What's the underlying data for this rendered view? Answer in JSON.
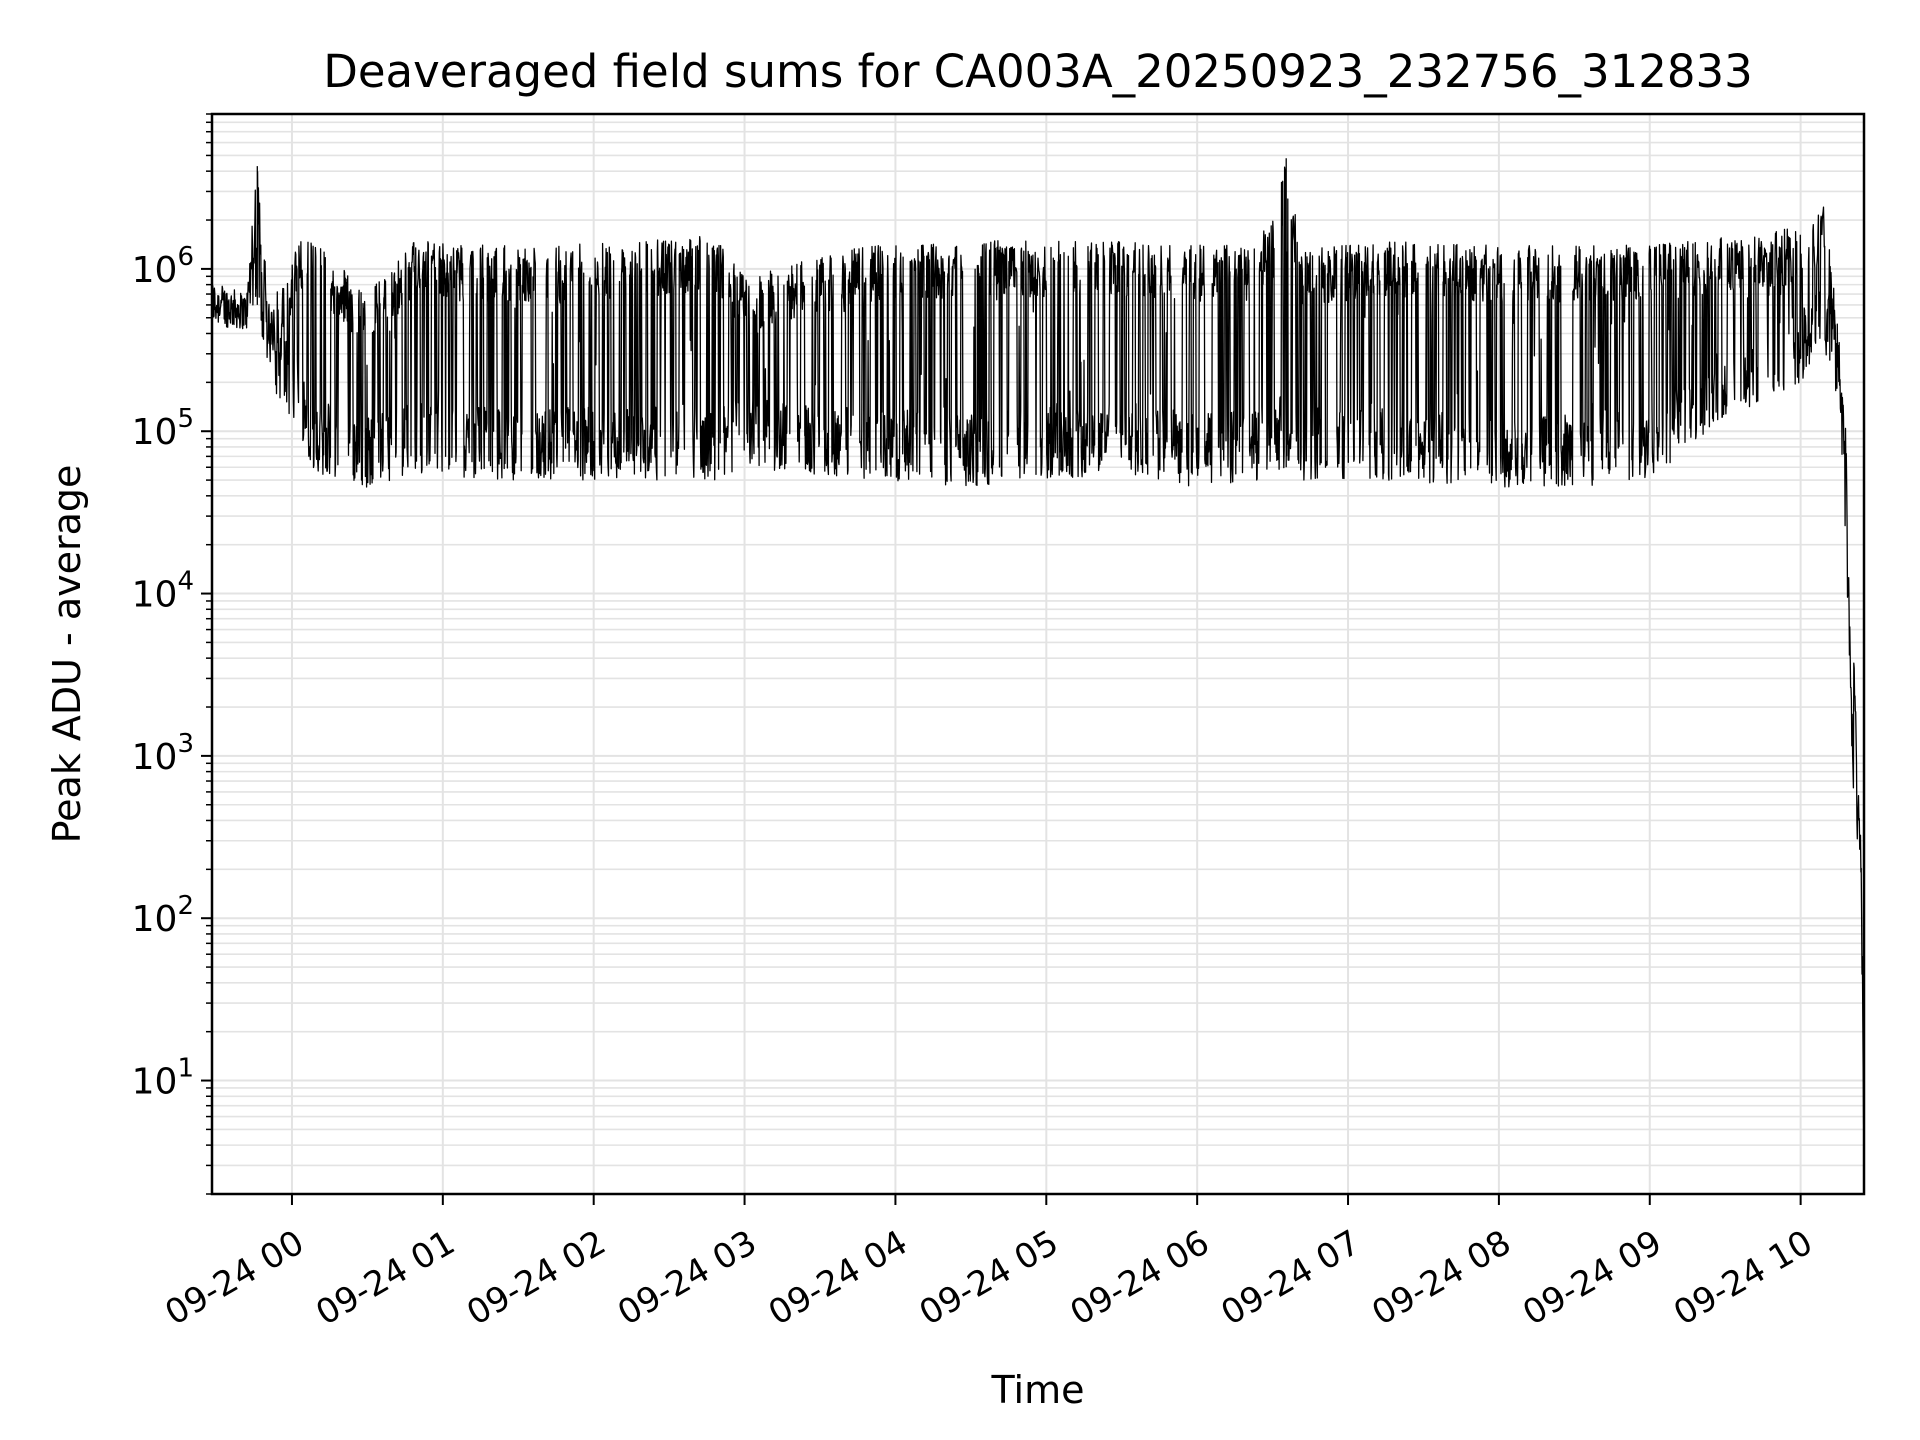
{
  "chart_data": {
    "type": "line",
    "title": "Deaveraged field sums for CA003A_20250923_232756_312833",
    "xlabel": "Time",
    "ylabel": "Peak ADU - average",
    "yscale": "log",
    "ylim": [
      2,
      9000000
    ],
    "xlim_hours": [
      -0.53,
      10.42
    ],
    "grid": true,
    "line_color": "#000000",
    "x_ticks": [
      {
        "hour": 0,
        "label": "09-24 00"
      },
      {
        "hour": 1,
        "label": "09-24 01"
      },
      {
        "hour": 2,
        "label": "09-24 02"
      },
      {
        "hour": 3,
        "label": "09-24 03"
      },
      {
        "hour": 4,
        "label": "09-24 04"
      },
      {
        "hour": 5,
        "label": "09-24 05"
      },
      {
        "hour": 6,
        "label": "09-24 06"
      },
      {
        "hour": 7,
        "label": "09-24 07"
      },
      {
        "hour": 8,
        "label": "09-24 08"
      },
      {
        "hour": 9,
        "label": "09-24 09"
      },
      {
        "hour": 10,
        "label": "09-24 10"
      }
    ],
    "y_ticks": [
      {
        "value": 10,
        "base": "10",
        "exp": "1"
      },
      {
        "value": 100,
        "base": "10",
        "exp": "2"
      },
      {
        "value": 1000,
        "base": "10",
        "exp": "3"
      },
      {
        "value": 10000,
        "base": "10",
        "exp": "4"
      },
      {
        "value": 100000,
        "base": "10",
        "exp": "5"
      },
      {
        "value": 1000000,
        "base": "10",
        "exp": "6"
      }
    ],
    "envelope": [
      {
        "t": -0.53,
        "low": 450000,
        "high": 850000
      },
      {
        "t": -0.3,
        "low": 420000,
        "high": 700000
      },
      {
        "t": -0.28,
        "low": 500000,
        "high": 1300000
      },
      {
        "t": -0.23,
        "low": 600000,
        "high": 4300000
      },
      {
        "t": -0.15,
        "low": 200000,
        "high": 600000
      },
      {
        "t": 0.05,
        "low": 100000,
        "high": 1500000
      },
      {
        "t": 0.15,
        "low": 55000,
        "high": 1500000
      },
      {
        "t": 0.5,
        "low": 45000,
        "high": 700000
      },
      {
        "t": 0.8,
        "low": 55000,
        "high": 1500000
      },
      {
        "t": 1.2,
        "low": 50000,
        "high": 1400000
      },
      {
        "t": 1.8,
        "low": 50000,
        "high": 1400000
      },
      {
        "t": 2.2,
        "low": 50000,
        "high": 1500000
      },
      {
        "t": 2.8,
        "low": 50000,
        "high": 1600000
      },
      {
        "t": 3.0,
        "low": 60000,
        "high": 900000
      },
      {
        "t": 3.8,
        "low": 50000,
        "high": 1400000
      },
      {
        "t": 4.5,
        "low": 45000,
        "high": 1500000
      },
      {
        "t": 5.0,
        "low": 50000,
        "high": 1500000
      },
      {
        "t": 5.5,
        "low": 55000,
        "high": 1500000
      },
      {
        "t": 6.0,
        "low": 45000,
        "high": 1400000
      },
      {
        "t": 6.4,
        "low": 50000,
        "high": 1400000
      },
      {
        "t": 6.59,
        "low": 60000,
        "high": 4800000
      },
      {
        "t": 6.7,
        "low": 50000,
        "high": 1300000
      },
      {
        "t": 7.2,
        "low": 50000,
        "high": 1500000
      },
      {
        "t": 8.0,
        "low": 45000,
        "high": 1400000
      },
      {
        "t": 8.5,
        "low": 45000,
        "high": 1400000
      },
      {
        "t": 9.0,
        "low": 50000,
        "high": 1400000
      },
      {
        "t": 9.5,
        "low": 120000,
        "high": 1600000
      },
      {
        "t": 10.0,
        "low": 200000,
        "high": 1800000
      },
      {
        "t": 10.15,
        "low": 300000,
        "high": 2600000
      },
      {
        "t": 10.25,
        "low": 150000,
        "high": 500000
      },
      {
        "t": 10.3,
        "low": 20000,
        "high": 100000
      },
      {
        "t": 10.35,
        "low": 500,
        "high": 7000
      },
      {
        "t": 10.38,
        "low": 200,
        "high": 1000
      },
      {
        "t": 10.4,
        "low": 100,
        "high": 300
      },
      {
        "t": 10.42,
        "low": 3.5,
        "high": 10
      }
    ]
  }
}
